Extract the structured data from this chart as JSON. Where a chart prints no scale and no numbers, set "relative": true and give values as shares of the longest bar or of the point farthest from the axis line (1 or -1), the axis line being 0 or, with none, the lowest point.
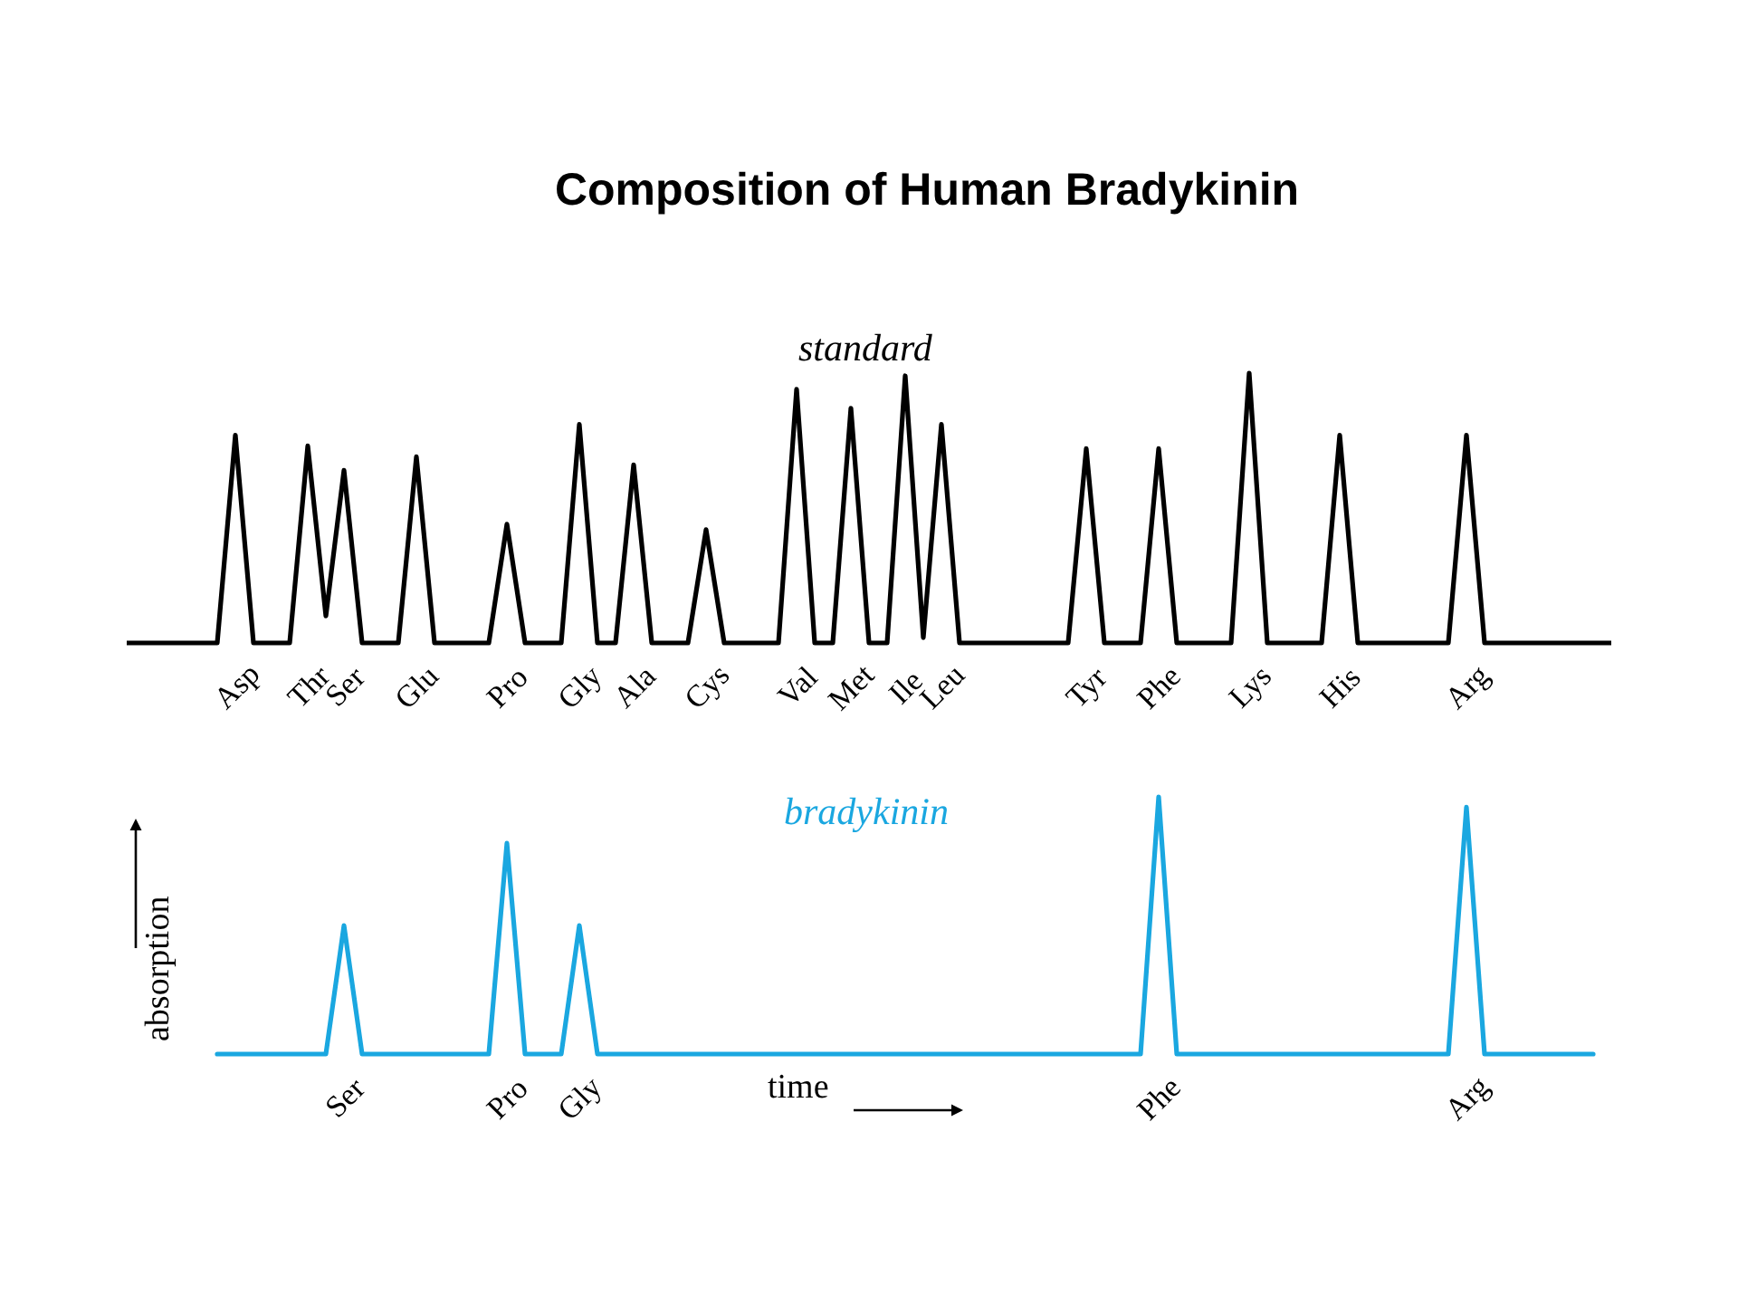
{
  "chart_data": [
    {
      "type": "line",
      "title": "Composition of Human Bradykinin",
      "relative": true,
      "tick_labels": "x",
      "categories": [
        null,
        null,
        null,
        null,
        null,
        null,
        "Asp",
        null,
        null,
        null,
        "Thr",
        null,
        "Ser",
        null,
        null,
        null,
        "Glu",
        null,
        null,
        null,
        null,
        "Pro",
        null,
        null,
        null,
        "Gly",
        null,
        null,
        "Ala",
        null,
        null,
        null,
        "Cys",
        null,
        null,
        null,
        null,
        "Val",
        null,
        null,
        "Met",
        null,
        null,
        "Ile",
        null,
        "Leu",
        null,
        null,
        null,
        null,
        null,
        null,
        null,
        "Tyr",
        null,
        null,
        null,
        "Phe",
        null,
        null,
        null,
        null,
        "Lys",
        null,
        null,
        null,
        null,
        "His",
        null,
        null,
        null,
        null,
        null,
        null,
        "Arg",
        null,
        null,
        null,
        null,
        null,
        null,
        null,
        null
      ],
      "series": [
        {
          "name": "standard",
          "color": "#000000",
          "values": [
            0,
            0,
            0,
            0,
            0,
            0,
            0.77,
            0,
            0,
            0,
            0.73,
            0.1,
            0.64,
            0,
            0,
            0,
            0.69,
            0,
            0,
            0,
            0,
            0.44,
            0,
            0,
            0,
            0.81,
            0,
            0,
            0.66,
            0,
            0,
            0,
            0.42,
            0,
            0,
            0,
            0,
            0.94,
            0,
            0,
            0.87,
            0,
            0,
            0.99,
            0.02,
            0.81,
            0,
            0,
            0,
            0,
            0,
            0,
            0,
            0.72,
            0,
            0,
            0,
            0.72,
            0,
            0,
            0,
            0,
            1,
            0,
            0,
            0,
            0,
            0.77,
            0,
            0,
            0,
            0,
            0,
            0,
            0.77,
            0,
            0,
            0,
            0,
            0,
            0,
            0,
            0
          ]
        }
      ]
    },
    {
      "type": "line",
      "relative": true,
      "tick_labels": "x",
      "xlabel": "time",
      "ylabel": "absorption",
      "categories": [
        null,
        null,
        null,
        null,
        null,
        null,
        null,
        null,
        null,
        null,
        null,
        null,
        "Ser",
        null,
        null,
        null,
        null,
        null,
        null,
        null,
        null,
        "Pro",
        null,
        null,
        null,
        "Gly",
        null,
        null,
        null,
        null,
        null,
        null,
        null,
        null,
        null,
        null,
        null,
        null,
        null,
        null,
        null,
        null,
        null,
        null,
        null,
        null,
        null,
        null,
        null,
        null,
        null,
        null,
        null,
        null,
        null,
        null,
        null,
        "Phe",
        null,
        null,
        null,
        null,
        null,
        null,
        null,
        null,
        null,
        null,
        null,
        null,
        null,
        null,
        null,
        null,
        "Arg",
        null,
        null,
        null,
        null,
        null,
        null,
        null,
        null
      ],
      "series": [
        {
          "name": "bradykinin",
          "color": "#1aa7e0",
          "values": [
            null,
            null,
            null,
            null,
            null,
            0,
            0,
            0,
            0,
            0,
            0,
            0,
            0.5,
            0,
            0,
            0,
            0,
            0,
            0,
            0,
            0,
            0.82,
            0,
            0,
            0,
            0.5,
            0,
            0,
            0,
            0,
            0,
            0,
            0,
            0,
            0,
            0,
            0,
            0,
            0,
            0,
            0,
            0,
            0,
            0,
            0,
            0,
            0,
            0,
            0,
            0,
            0,
            0,
            0,
            0,
            0,
            0,
            0,
            1,
            0,
            0,
            0,
            0,
            0,
            0,
            0,
            0,
            0,
            0,
            0,
            0,
            0,
            0,
            0,
            0,
            0.96,
            0,
            0,
            0,
            0,
            0,
            0,
            0,
            null
          ]
        }
      ]
    }
  ]
}
